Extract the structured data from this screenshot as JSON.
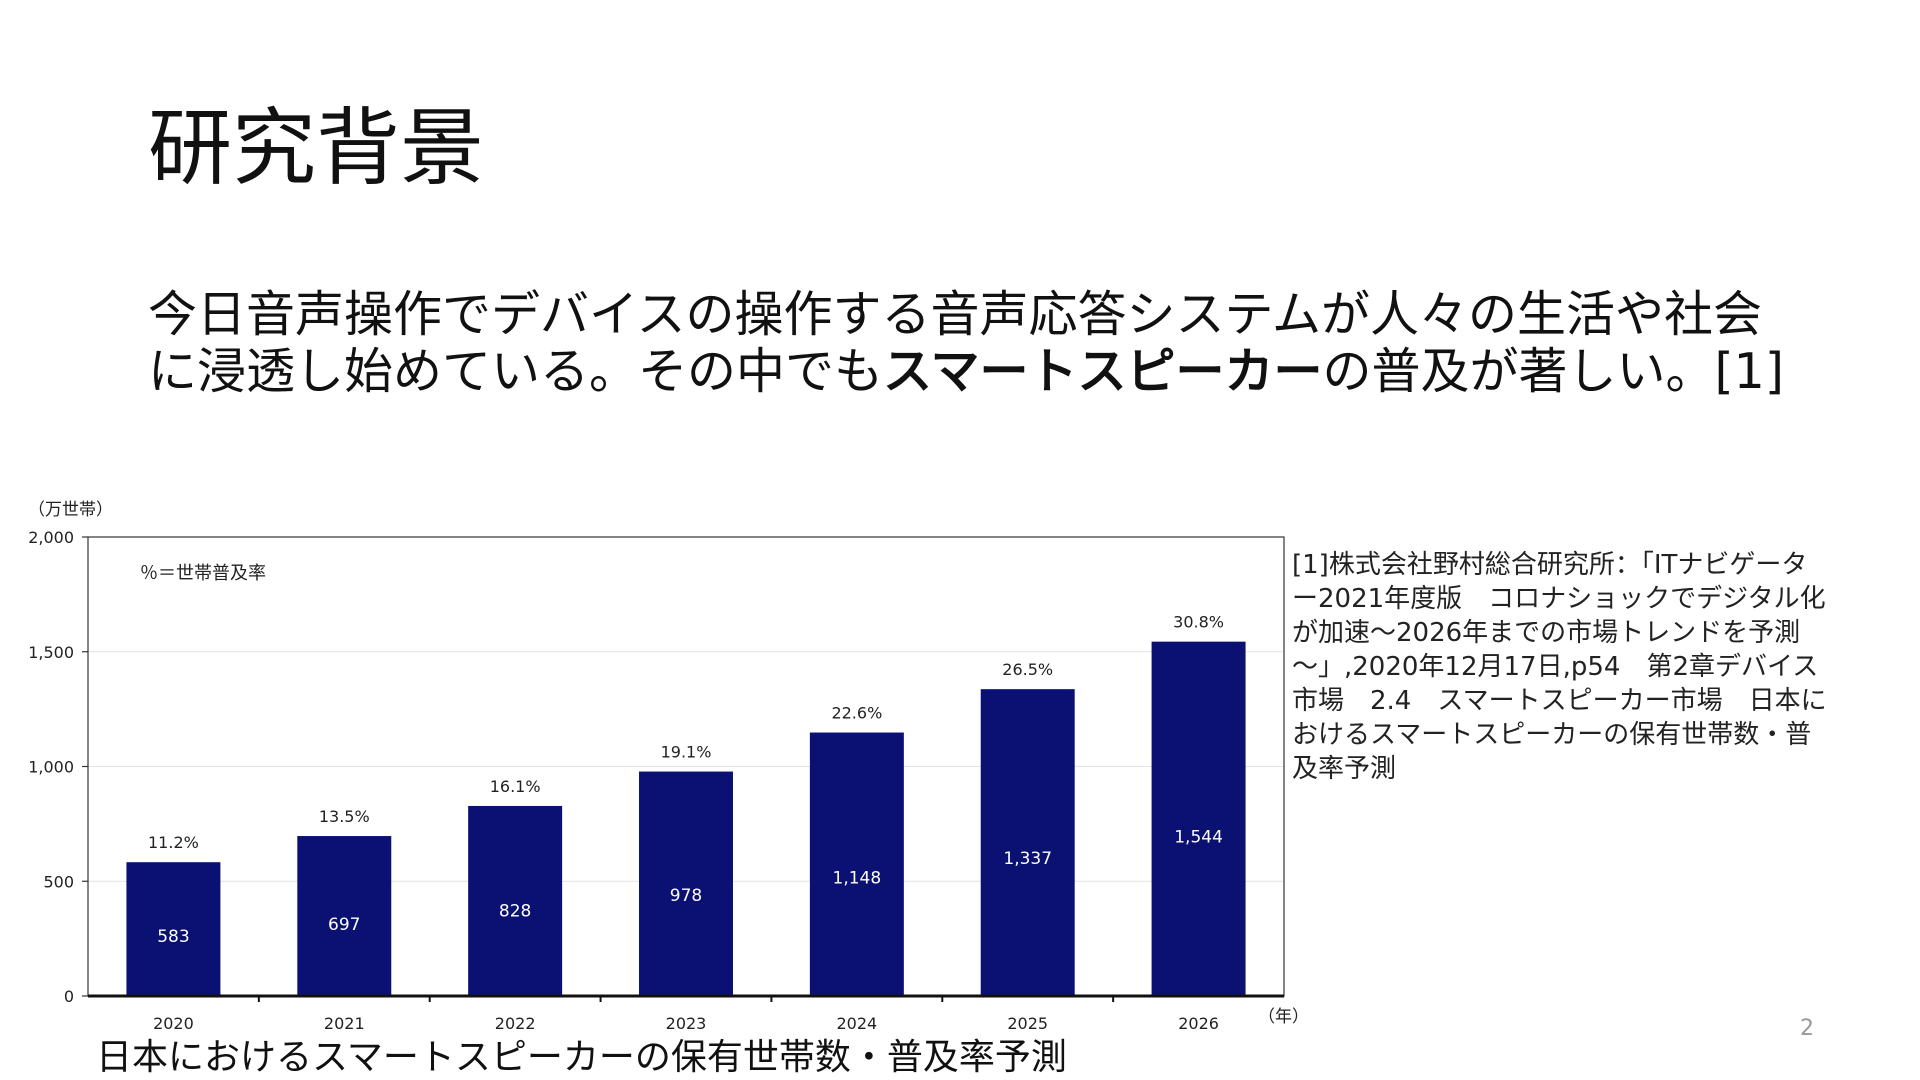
{
  "slide": {
    "title": "研究背景",
    "body_pre": "今日音声操作でデバイスの操作する音声応答システムが人々の生活や社会に浸透し始めている。その中でも",
    "body_bold": "スマートスピーカー",
    "body_post": "の普及が著しい。[1]",
    "reference": "[1]株式会社野村総合研究所：「ITナビゲーター2021年度版　コロナショックでデジタル化が加速～2026年までの市場トレンドを予測～」,2020年12月17日,p54　第2章デバイス市場　2.4　スマートスピーカー市場　日本におけるスマートスピーカーの保有世帯数・普及率予測",
    "page_number": "2"
  },
  "chart_caption": "日本におけるスマートスピーカーの保有世帯数・普及率予測",
  "chart_data": {
    "type": "bar",
    "title": "",
    "ylabel": "（万世帯）",
    "xlabel": "（年）",
    "legend_note": "％＝世帯普及率",
    "categories": [
      "2020",
      "2021",
      "2022",
      "2023",
      "2024",
      "2025",
      "2026"
    ],
    "values": [
      583,
      697,
      828,
      978,
      1148,
      1337,
      1544
    ],
    "value_labels": [
      "583",
      "697",
      "828",
      "978",
      "1,148",
      "1,337",
      "1,544"
    ],
    "rate_labels": [
      "11.2%",
      "13.5%",
      "16.1%",
      "19.1%",
      "22.6%",
      "26.5%",
      "30.8%"
    ],
    "ylim": [
      0,
      2000
    ],
    "yticks": [
      0,
      500,
      1000,
      1500,
      2000
    ],
    "ytick_labels": [
      "0",
      "500",
      "1,000",
      "1,500",
      "2,000"
    ],
    "grid": true,
    "bar_color": "#0a1172"
  }
}
